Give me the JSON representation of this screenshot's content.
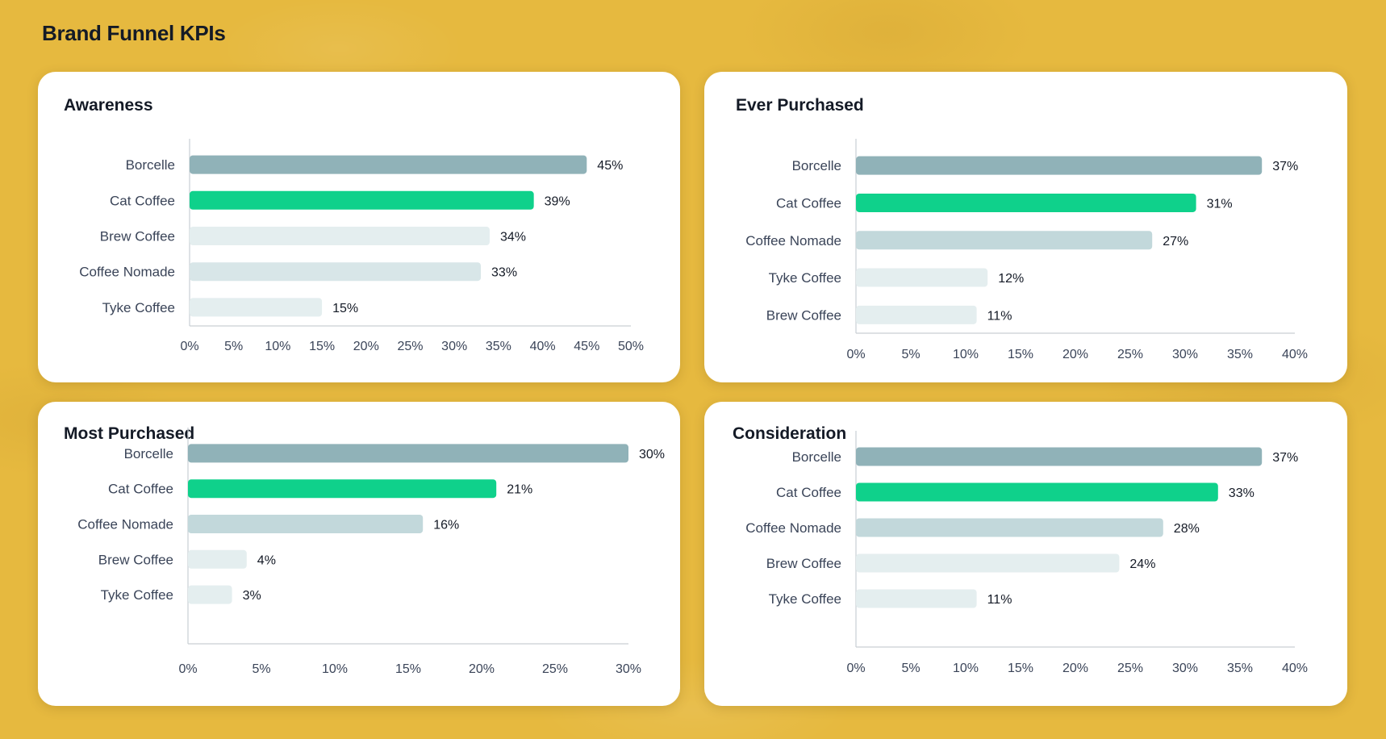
{
  "page": {
    "title": "Brand Funnel KPIs"
  },
  "colors": {
    "series": [
      "#90b2b8",
      "#0fd18b",
      "#c2d8db",
      "#e4eeef"
    ],
    "axis": "#c9cfd4"
  },
  "chart_data": [
    {
      "type": "bar",
      "title": "Awareness",
      "categories": [
        "Borcelle",
        "Cat Coffee",
        "Brew Coffee",
        "Coffee Nomade",
        "Tyke Coffee"
      ],
      "values": [
        45,
        39,
        34,
        33,
        15
      ],
      "value_labels": [
        "45%",
        "39%",
        "34%",
        "33%",
        "15%"
      ],
      "xlim": [
        0,
        50
      ],
      "xticks": [
        "0%",
        "5%",
        "10%",
        "15%",
        "20%",
        "25%",
        "30%",
        "35%",
        "40%",
        "45%",
        "50%"
      ],
      "bar_colors": [
        "#90b2b8",
        "#0fd18b",
        "#e4eeef",
        "#d8e6e8",
        "#e4eeef"
      ],
      "orientation": "horizontal",
      "grid": false
    },
    {
      "type": "bar",
      "title": "Ever Purchased",
      "categories": [
        "Borcelle",
        "Cat Coffee",
        "Coffee Nomade",
        "Tyke Coffee",
        "Brew Coffee"
      ],
      "values": [
        37,
        31,
        27,
        12,
        11
      ],
      "value_labels": [
        "37%",
        "31%",
        "27%",
        "12%",
        "11%"
      ],
      "xlim": [
        0,
        40
      ],
      "xticks": [
        "0%",
        "5%",
        "10%",
        "15%",
        "20%",
        "25%",
        "30%",
        "35%",
        "40%"
      ],
      "bar_colors": [
        "#90b2b8",
        "#0fd18b",
        "#c2d8db",
        "#e4eeef",
        "#e4eeef"
      ],
      "orientation": "horizontal",
      "grid": false
    },
    {
      "type": "bar",
      "title": "Most Purchased",
      "categories": [
        "Borcelle",
        "Cat Coffee",
        "Coffee Nomade",
        "Brew Coffee",
        "Tyke Coffee"
      ],
      "values": [
        30,
        21,
        16,
        4,
        3
      ],
      "value_labels": [
        "30%",
        "21%",
        "16%",
        "4%",
        "3%"
      ],
      "xlim": [
        0,
        30
      ],
      "xticks": [
        "0%",
        "5%",
        "10%",
        "15%",
        "20%",
        "25%",
        "30%"
      ],
      "bar_colors": [
        "#90b2b8",
        "#0fd18b",
        "#c2d8db",
        "#e4eeef",
        "#e4eeef"
      ],
      "orientation": "horizontal",
      "grid": false
    },
    {
      "type": "bar",
      "title": "Consideration",
      "categories": [
        "Borcelle",
        "Cat Coffee",
        "Coffee Nomade",
        "Brew Coffee",
        "Tyke Coffee"
      ],
      "values": [
        37,
        33,
        28,
        24,
        11
      ],
      "value_labels": [
        "37%",
        "33%",
        "28%",
        "24%",
        "11%"
      ],
      "xlim": [
        0,
        40
      ],
      "xticks": [
        "0%",
        "5%",
        "10%",
        "15%",
        "20%",
        "25%",
        "30%",
        "35%",
        "40%"
      ],
      "bar_colors": [
        "#90b2b8",
        "#0fd18b",
        "#c2d8db",
        "#e4eeef",
        "#e4eeef"
      ],
      "orientation": "horizontal",
      "grid": false
    }
  ]
}
